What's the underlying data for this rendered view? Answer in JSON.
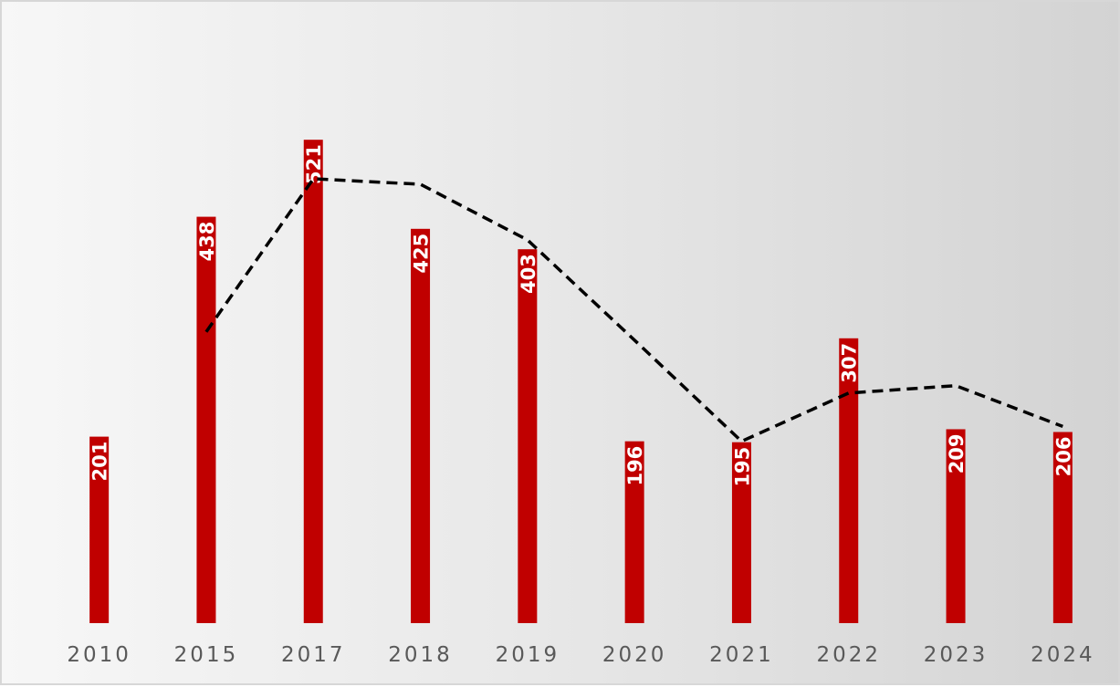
{
  "chart_data": {
    "type": "bar",
    "categories": [
      "2010",
      "2015",
      "2017",
      "2018",
      "2019",
      "2020",
      "2021",
      "2022",
      "2023",
      "2024"
    ],
    "series": [
      {
        "type": "bar",
        "values": [
          201,
          438,
          521,
          425,
          403,
          196,
          195,
          307,
          209,
          206
        ],
        "color": "#c00000"
      },
      {
        "type": "line",
        "style": "dashed",
        "color": "#000000",
        "values": [
          null,
          314,
          479,
          473,
          413,
          305,
          196,
          248,
          256,
          212
        ]
      }
    ],
    "data_labels": [
      "201",
      "438",
      "521",
      "425",
      "403",
      "196",
      "195",
      "307",
      "209",
      "206"
    ],
    "title": "",
    "xlabel": "",
    "ylabel": "",
    "ylim": [
      0,
      650
    ],
    "grid": false,
    "legend": "none",
    "background": [
      "#f7f7f7",
      "#d3d3d3"
    ]
  }
}
